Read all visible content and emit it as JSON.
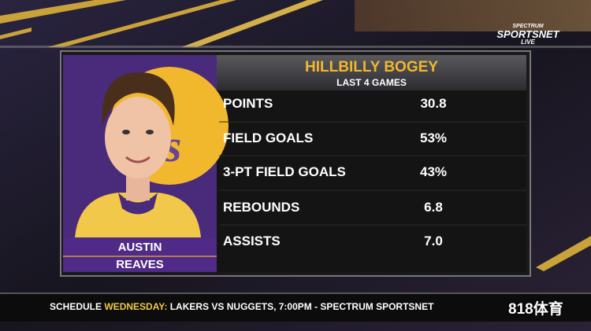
{
  "network": {
    "line1": "SPECTRUM",
    "line2": "SPORTSNET",
    "line3": "LIVE"
  },
  "panel": {
    "title": "HILLBILLY BOGEY",
    "subtitle": "LAST 4 GAMES",
    "player": {
      "first_name": "AUSTIN",
      "last_name": "REAVES"
    },
    "stats": [
      [
        "POINTS",
        "30.8"
      ],
      [
        "FIELD GOALS",
        "53%"
      ],
      [
        "3-PT FIELD GOALS",
        "43%"
      ],
      [
        "REBOUNDS",
        "6.8"
      ],
      [
        "ASSISTS",
        "7.0"
      ]
    ]
  },
  "ticker": {
    "label": "SCHEDULE",
    "day": "WEDNESDAY:",
    "text": "LAKERS VS NUGGETS, 7:00PM - SPECTRUM SPORTSNET"
  },
  "watermark": "818体育"
}
